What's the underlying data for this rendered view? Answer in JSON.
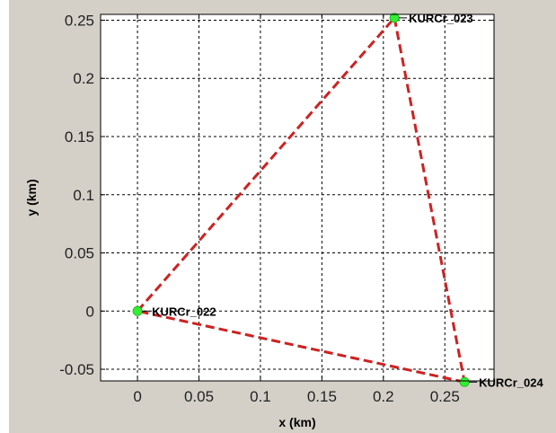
{
  "chart_data": {
    "type": "scatter",
    "title": "",
    "xlabel": "x (km)",
    "ylabel": "y (km)",
    "xlim": [
      -0.03,
      0.29
    ],
    "ylim": [
      -0.06,
      0.255
    ],
    "xticks": [
      "0",
      "0.05",
      "0.1",
      "0.15",
      "0.2",
      "0.25"
    ],
    "xtick_values": [
      0,
      0.05,
      0.1,
      0.15,
      0.2,
      0.25
    ],
    "yticks": [
      "-0.05",
      "0",
      "0.05",
      "0.1",
      "0.15",
      "0.2",
      "0.25"
    ],
    "ytick_values": [
      -0.05,
      0,
      0.05,
      0.1,
      0.15,
      0.2,
      0.25
    ],
    "grid": true,
    "grid_style": "dashed",
    "points": [
      {
        "label": "KURCr_022",
        "x": 0.0,
        "y": 0.0
      },
      {
        "label": "KURCr_023",
        "x": 0.209,
        "y": 0.252
      },
      {
        "label": "KURCr_024",
        "x": 0.266,
        "y": -0.061
      }
    ],
    "polygon": {
      "closed": true,
      "line_style": "dashed",
      "order": [
        "KURCr_022",
        "KURCr_023",
        "KURCr_024"
      ]
    },
    "colors": {
      "line": "#cc2222",
      "marker": "#33ee33",
      "grid": "#000000",
      "background": "#d4d0c8",
      "plot_area": "#ffffff"
    }
  }
}
